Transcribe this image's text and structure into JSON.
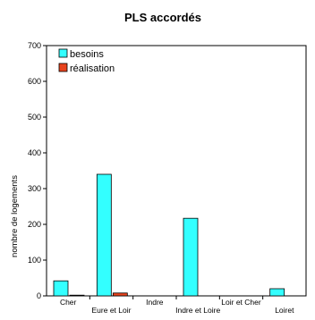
{
  "chart_data": {
    "type": "bar",
    "title": "PLS accordés",
    "ylabel": "nombre de logements",
    "xlabel": "",
    "ylim": [
      0,
      700
    ],
    "yticks": [
      0,
      100,
      200,
      300,
      400,
      500,
      600,
      700
    ],
    "grid": false,
    "legend_position": "top-left",
    "categories": [
      "Cher",
      "Eure et Loir",
      "Indre",
      "Indre et Loire",
      "Loir et Cher",
      "Loiret"
    ],
    "series": [
      {
        "name": "besoins",
        "color": "#33ffff",
        "values": [
          42,
          340,
          0,
          217,
          0,
          20
        ]
      },
      {
        "name": "réalisation",
        "color": "#e8431d",
        "values": [
          2,
          8,
          0,
          0,
          0,
          0
        ]
      }
    ]
  }
}
